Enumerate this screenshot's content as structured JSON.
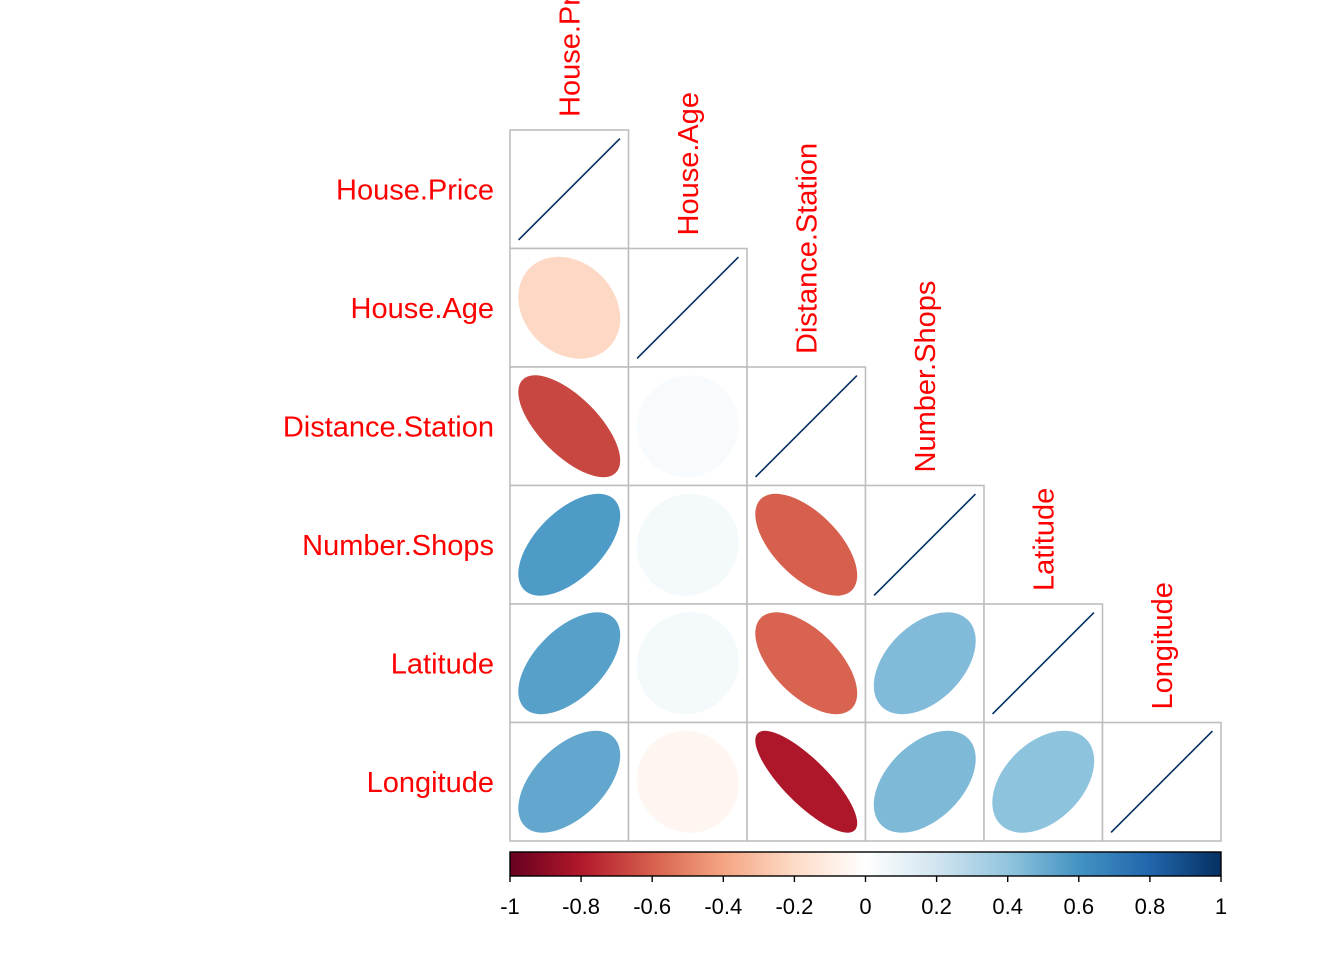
{
  "chart_data": {
    "type": "heatmap",
    "title": "",
    "variables": [
      "House.Price",
      "House.Age",
      "Distance.Station",
      "Number.Shops",
      "Latitude",
      "Longitude"
    ],
    "correlation_matrix": [
      [
        1.0,
        -0.21,
        -0.67,
        0.57,
        0.55,
        0.52
      ],
      [
        -0.21,
        1.0,
        0.03,
        0.05,
        0.05,
        -0.05
      ],
      [
        -0.67,
        0.03,
        1.0,
        -0.6,
        -0.59,
        -0.81
      ],
      [
        0.57,
        0.05,
        -0.6,
        1.0,
        0.44,
        0.45
      ],
      [
        0.55,
        0.05,
        -0.59,
        0.44,
        1.0,
        0.41
      ],
      [
        0.52,
        -0.05,
        -0.81,
        0.45,
        0.41,
        1.0
      ]
    ],
    "triangle": "lower",
    "method": "ellipse",
    "colorbar": {
      "range": [
        -1,
        1
      ],
      "ticks": [
        "-1",
        "-0.8",
        "-0.6",
        "-0.4",
        "-0.2",
        "0",
        "0.2",
        "0.4",
        "0.6",
        "0.8",
        "1"
      ],
      "colors": [
        "#67001F",
        "#B2182B",
        "#D6604D",
        "#F4A582",
        "#FDDBC7",
        "#FFFFFF",
        "#D1E5F0",
        "#92C5DE",
        "#4393C3",
        "#2166AC",
        "#053061"
      ]
    },
    "label_color": "#FF0000"
  }
}
